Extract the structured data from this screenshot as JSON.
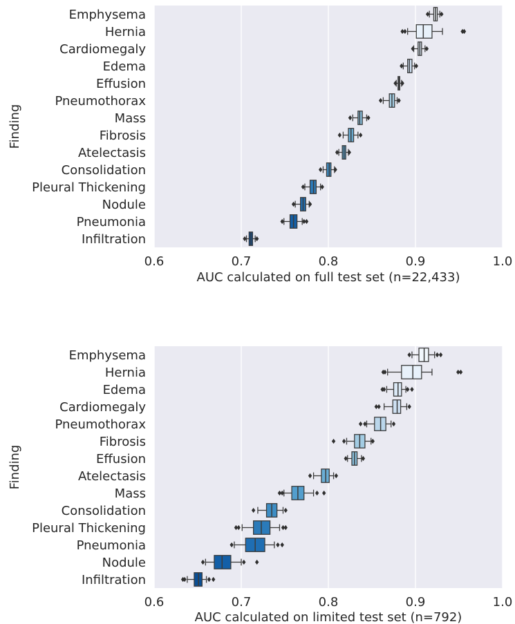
{
  "chart_data": [
    {
      "type": "box",
      "xlabel": "AUC calculated on full test set (n=22,433)",
      "ylabel": "Finding",
      "xlim": [
        0.6,
        1.0
      ],
      "xticks": [
        "0.6",
        "0.7",
        "0.8",
        "0.9",
        "1.0"
      ],
      "grid": true,
      "categories": [
        "Emphysema",
        "Hernia",
        "Cardiomegaly",
        "Edema",
        "Effusion",
        "Pneumothorax",
        "Mass",
        "Fibrosis",
        "Atelectasis",
        "Consolidation",
        "Pleural Thickening",
        "Nodule",
        "Pneumonia",
        "Infiltration"
      ],
      "boxes": [
        {
          "q1": 0.921,
          "median": 0.923,
          "q3": 0.925,
          "whisker_low": 0.916,
          "whisker_high": 0.928,
          "outliers": [
            0.914,
            0.93
          ],
          "color": "#f2f8fd"
        },
        {
          "q1": 0.901,
          "median": 0.909,
          "q3": 0.919,
          "whisker_low": 0.891,
          "whisker_high": 0.931,
          "outliers": [
            0.885,
            0.888,
            0.954,
            0.956
          ],
          "color": "#e8f1fa"
        },
        {
          "q1": 0.903,
          "median": 0.905,
          "q3": 0.907,
          "whisker_low": 0.898,
          "whisker_high": 0.911,
          "outliers": [
            0.897,
            0.913
          ],
          "color": "#dbe9f6"
        },
        {
          "q1": 0.891,
          "median": 0.893,
          "q3": 0.896,
          "whisker_low": 0.886,
          "whisker_high": 0.899,
          "outliers": [
            0.884,
            0.901
          ],
          "color": "#cee0f2"
        },
        {
          "q1": 0.88,
          "median": 0.881,
          "q3": 0.882,
          "whisker_low": 0.878,
          "whisker_high": 0.884,
          "outliers": [
            0.877,
            0.885
          ],
          "color": "#bad6eb"
        },
        {
          "q1": 0.87,
          "median": 0.873,
          "q3": 0.876,
          "whisker_low": 0.863,
          "whisker_high": 0.879,
          "outliers": [
            0.86,
            0.881
          ],
          "color": "#a3cce3"
        },
        {
          "q1": 0.834,
          "median": 0.836,
          "q3": 0.839,
          "whisker_low": 0.828,
          "whisker_high": 0.844,
          "outliers": [
            0.825,
            0.846
          ],
          "color": "#88bedc"
        },
        {
          "q1": 0.823,
          "median": 0.826,
          "q3": 0.829,
          "whisker_low": 0.817,
          "whisker_high": 0.834,
          "outliers": [
            0.813,
            0.837
          ],
          "color": "#6aaed6"
        },
        {
          "q1": 0.816,
          "median": 0.818,
          "q3": 0.82,
          "whisker_low": 0.812,
          "whisker_high": 0.823,
          "outliers": [
            0.81,
            0.824
          ],
          "color": "#539ecd"
        },
        {
          "q1": 0.798,
          "median": 0.801,
          "q3": 0.803,
          "whisker_low": 0.794,
          "whisker_high": 0.807,
          "outliers": [
            0.791,
            0.808
          ],
          "color": "#3d8dc4"
        },
        {
          "q1": 0.779,
          "median": 0.783,
          "q3": 0.786,
          "whisker_low": 0.773,
          "whisker_high": 0.791,
          "outliers": [
            0.771,
            0.793
          ],
          "color": "#2b7bba"
        },
        {
          "q1": 0.768,
          "median": 0.771,
          "q3": 0.774,
          "whisker_low": 0.762,
          "whisker_high": 0.778,
          "outliers": [
            0.76,
            0.779
          ],
          "color": "#1f6eb3"
        },
        {
          "q1": 0.756,
          "median": 0.76,
          "q3": 0.764,
          "whisker_low": 0.749,
          "whisker_high": 0.77,
          "outliers": [
            0.747,
            0.772,
            0.775
          ],
          "color": "#135fa7"
        },
        {
          "q1": 0.709,
          "median": 0.711,
          "q3": 0.713,
          "whisker_low": 0.706,
          "whisker_high": 0.716,
          "outliers": [
            0.704,
            0.718
          ],
          "color": "#0b4f95"
        }
      ]
    },
    {
      "type": "box",
      "xlabel": "AUC calculated on limited test set (n=792)",
      "ylabel": "Finding",
      "xlim": [
        0.6,
        1.0
      ],
      "xticks": [
        "0.6",
        "0.7",
        "0.8",
        "0.9",
        "1.0"
      ],
      "grid": true,
      "categories": [
        "Emphysema",
        "Hernia",
        "Edema",
        "Cardiomegaly",
        "Pneumothorax",
        "Fibrosis",
        "Effusion",
        "Atelectasis",
        "Mass",
        "Consolidation",
        "Pleural Thickening",
        "Pneumonia",
        "Nodule",
        "Infiltration"
      ],
      "boxes": [
        {
          "q1": 0.904,
          "median": 0.91,
          "q3": 0.915,
          "whisker_low": 0.896,
          "whisker_high": 0.922,
          "outliers": [
            0.893,
            0.925,
            0.929
          ],
          "color": "#f2f8fd"
        },
        {
          "q1": 0.884,
          "median": 0.897,
          "q3": 0.907,
          "whisker_low": 0.868,
          "whisker_high": 0.919,
          "outliers": [
            0.863,
            0.865,
            0.949,
            0.952
          ],
          "color": "#e8f1fa"
        },
        {
          "q1": 0.875,
          "median": 0.88,
          "q3": 0.884,
          "whisker_low": 0.867,
          "whisker_high": 0.889,
          "outliers": [
            0.862,
            0.864,
            0.891,
            0.896
          ],
          "color": "#dbe9f6"
        },
        {
          "q1": 0.874,
          "median": 0.879,
          "q3": 0.883,
          "whisker_low": 0.864,
          "whisker_high": 0.89,
          "outliers": [
            0.855,
            0.858,
            0.893
          ],
          "color": "#cee0f2"
        },
        {
          "q1": 0.853,
          "median": 0.86,
          "q3": 0.866,
          "whisker_low": 0.844,
          "whisker_high": 0.872,
          "outliers": [
            0.837,
            0.842,
            0.875
          ],
          "color": "#bad6eb"
        },
        {
          "q1": 0.83,
          "median": 0.836,
          "q3": 0.842,
          "whisker_low": 0.821,
          "whisker_high": 0.849,
          "outliers": [
            0.806,
            0.818,
            0.851
          ],
          "color": "#a3cce3"
        },
        {
          "q1": 0.827,
          "median": 0.83,
          "q3": 0.833,
          "whisker_low": 0.822,
          "whisker_high": 0.838,
          "outliers": [
            0.82,
            0.84
          ],
          "color": "#88bedc"
        },
        {
          "q1": 0.792,
          "median": 0.797,
          "q3": 0.801,
          "whisker_low": 0.783,
          "whisker_high": 0.806,
          "outliers": [
            0.779,
            0.809
          ],
          "color": "#6aaed6"
        },
        {
          "q1": 0.758,
          "median": 0.765,
          "q3": 0.772,
          "whisker_low": 0.749,
          "whisker_high": 0.783,
          "outliers": [
            0.744,
            0.747,
            0.787,
            0.795
          ],
          "color": "#539ecd"
        },
        {
          "q1": 0.729,
          "median": 0.735,
          "q3": 0.741,
          "whisker_low": 0.719,
          "whisker_high": 0.748,
          "outliers": [
            0.714,
            0.751
          ],
          "color": "#3d8dc4"
        },
        {
          "q1": 0.714,
          "median": 0.723,
          "q3": 0.733,
          "whisker_low": 0.701,
          "whisker_high": 0.744,
          "outliers": [
            0.694,
            0.697,
            0.748,
            0.751
          ],
          "color": "#2b7bba"
        },
        {
          "q1": 0.705,
          "median": 0.716,
          "q3": 0.727,
          "whisker_low": 0.692,
          "whisker_high": 0.738,
          "outliers": [
            0.689,
            0.742,
            0.747
          ],
          "color": "#1f6eb3"
        },
        {
          "q1": 0.669,
          "median": 0.678,
          "q3": 0.688,
          "whisker_low": 0.659,
          "whisker_high": 0.7,
          "outliers": [
            0.656,
            0.703,
            0.718
          ],
          "color": "#135fa7"
        },
        {
          "q1": 0.646,
          "median": 0.651,
          "q3": 0.655,
          "whisker_low": 0.638,
          "whisker_high": 0.66,
          "outliers": [
            0.633,
            0.635,
            0.663,
            0.668
          ],
          "color": "#0b4f95"
        }
      ]
    }
  ]
}
